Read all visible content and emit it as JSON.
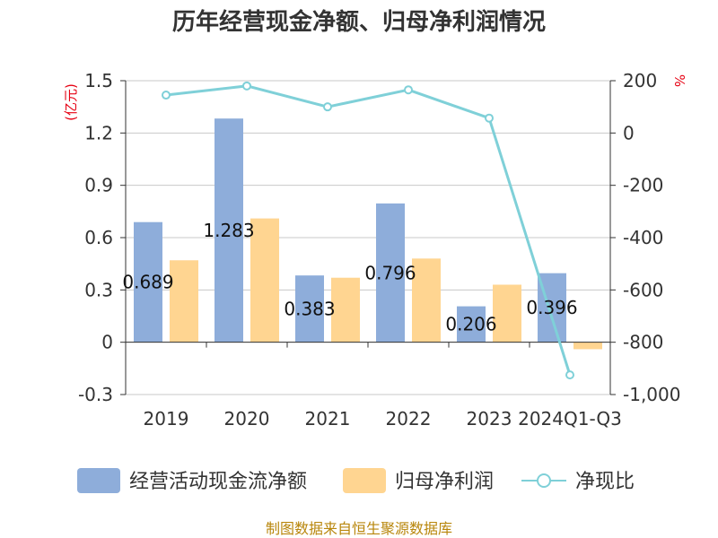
{
  "chart_data": {
    "type": "bar",
    "title": "历年经营现金净额、归母净利润情况",
    "categories": [
      "2019",
      "2020",
      "2021",
      "2022",
      "2023",
      "2024Q1-Q3"
    ],
    "series": [
      {
        "name": "经营活动现金流净额",
        "type": "bar",
        "axis": "left",
        "color": "#8eadda",
        "values": [
          0.689,
          1.283,
          0.383,
          0.796,
          0.206,
          0.396
        ],
        "labels": [
          "0.689",
          "1.283",
          "0.383",
          "0.796",
          "0.206",
          "0.396"
        ]
      },
      {
        "name": "归母净利润",
        "type": "bar",
        "axis": "left",
        "color": "#ffd591",
        "values": [
          0.47,
          0.71,
          0.37,
          0.48,
          0.33,
          -0.04
        ]
      },
      {
        "name": "净现比",
        "type": "line",
        "axis": "right",
        "color": "#7fd0d8",
        "values": [
          145,
          180,
          100,
          165,
          57,
          -925
        ]
      }
    ],
    "y_left": {
      "unit": "(亿元)",
      "min": -0.3,
      "max": 1.5,
      "ticks": [
        {
          "value": -0.3,
          "label": "-0.3"
        },
        {
          "value": 0,
          "label": "0"
        },
        {
          "value": 0.3,
          "label": "0.3"
        },
        {
          "value": 0.6,
          "label": "0.6"
        },
        {
          "value": 0.9,
          "label": "0.9"
        },
        {
          "value": 1.2,
          "label": "1.2"
        },
        {
          "value": 1.5,
          "label": "1.5"
        }
      ]
    },
    "y_right": {
      "unit": "%",
      "min": -1000,
      "max": 200,
      "ticks": [
        {
          "value": -1000,
          "label": "-1,000"
        },
        {
          "value": -800,
          "label": "-800"
        },
        {
          "value": -600,
          "label": "-600"
        },
        {
          "value": -400,
          "label": "-400"
        },
        {
          "value": -200,
          "label": "-200"
        },
        {
          "value": 0,
          "label": "0"
        },
        {
          "value": 200,
          "label": "200"
        }
      ]
    },
    "grid": true,
    "legend_position": "bottom"
  },
  "source": "制图数据来自恒生聚源数据库"
}
